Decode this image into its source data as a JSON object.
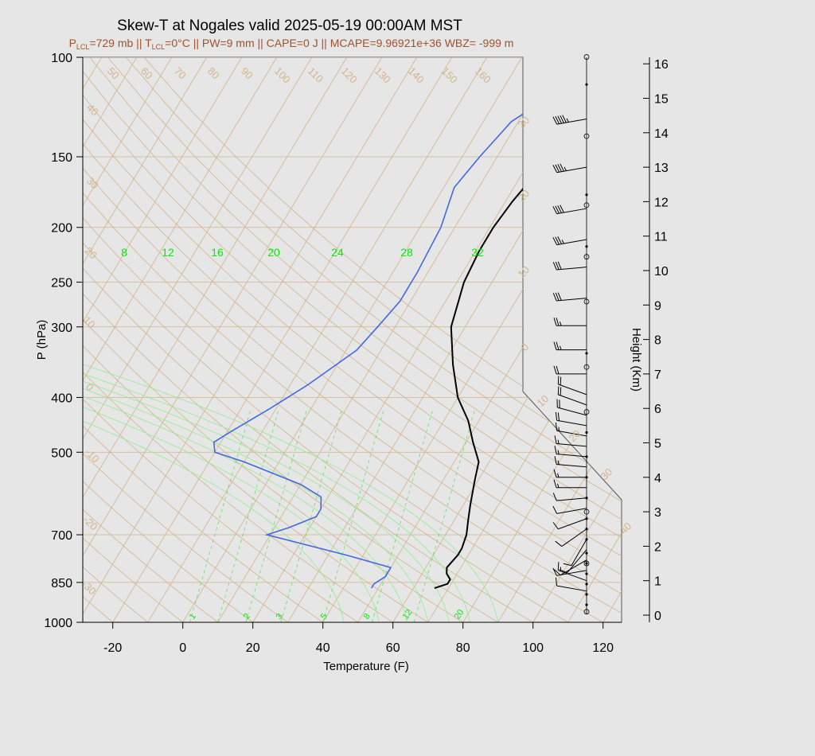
{
  "chart_data": {
    "type": "line",
    "title": "Skew-T at Nogales valid 2025-05-19 00:00AM MST",
    "subtitle": {
      "p_lcl_prefix": "P",
      "p_lcl_sub": "LCL",
      "p_lcl_value": "=729 mb || T",
      "t_lcl_sub": "LCL",
      "rest": "=0°C || PW=9 mm || CAPE=0 J || MCAPE=9.96921e+36 WBZ= -999 m"
    },
    "xlabel": "Temperature (F)",
    "ylabel": "P (hPa)",
    "y2label": "Height (Km)",
    "x_ticks": [
      "-20",
      "0",
      "20",
      "40",
      "60",
      "80",
      "100",
      "120"
    ],
    "p_ticks": [
      "100",
      "150",
      "200",
      "250",
      "300",
      "400",
      "500",
      "700",
      "850",
      "1000"
    ],
    "height_ticks": [
      "0",
      "1",
      "2",
      "3",
      "4",
      "5",
      "6",
      "7",
      "8",
      "9",
      "10",
      "11",
      "12",
      "13",
      "14",
      "15",
      "16"
    ],
    "isotherm_labels": [
      "50",
      "60",
      "70",
      "80",
      "90",
      "100",
      "110",
      "120",
      "130",
      "140",
      "150",
      "160"
    ],
    "theta_labels_left": [
      "40",
      "30",
      "20",
      "10",
      "0",
      "-10",
      "-20",
      "-30"
    ],
    "theta_labels_right": [
      "30",
      "20",
      "10",
      "0",
      "10",
      "20",
      "30",
      "40"
    ],
    "mixing_top_labels": [
      "8",
      "12",
      "16",
      "20",
      "24",
      "28",
      "32"
    ],
    "mixing_bottom_labels": [
      "1",
      "2",
      "3",
      "5",
      "8",
      "12",
      "20"
    ],
    "series": [
      {
        "name": "",
        "color": "#000000",
        "points": [
          [
            66,
            870
          ],
          [
            69,
            855
          ],
          [
            69,
            840
          ],
          [
            67,
            820
          ],
          [
            66,
            800
          ],
          [
            67,
            760
          ],
          [
            67,
            740
          ],
          [
            66,
            700
          ],
          [
            64,
            660
          ],
          [
            62,
            620
          ],
          [
            59,
            560
          ],
          [
            57,
            520
          ],
          [
            52,
            480
          ],
          [
            47,
            440
          ],
          [
            40,
            400
          ],
          [
            33,
            350
          ],
          [
            26,
            300
          ],
          [
            22,
            250
          ],
          [
            21,
            220
          ],
          [
            21,
            200
          ],
          [
            22,
            180
          ],
          [
            25,
            150
          ],
          [
            30,
            130
          ],
          [
            42,
            110
          ],
          [
            52,
            100
          ]
        ]
      },
      {
        "name": "",
        "color": "#4169e1",
        "points": [
          [
            48,
            870
          ],
          [
            48,
            855
          ],
          [
            50,
            830
          ],
          [
            50,
            800
          ],
          [
            35,
            760
          ],
          [
            9,
            700
          ],
          [
            14,
            680
          ],
          [
            20,
            650
          ],
          [
            20,
            630
          ],
          [
            18,
            600
          ],
          [
            10,
            570
          ],
          [
            -10,
            520
          ],
          [
            -20,
            500
          ],
          [
            -22,
            480
          ],
          [
            -19,
            460
          ],
          [
            -12,
            420
          ],
          [
            -5,
            380
          ],
          [
            3,
            330
          ],
          [
            5,
            300
          ],
          [
            7,
            270
          ],
          [
            7,
            240
          ],
          [
            6,
            200
          ],
          [
            3,
            170
          ],
          [
            5,
            150
          ],
          [
            8,
            130
          ],
          [
            25,
            100
          ]
        ]
      }
    ],
    "wind_barbs": [
      {
        "height_km": 14.4,
        "dir": 260,
        "kt": 55
      },
      {
        "height_km": 13.0,
        "dir": 260,
        "kt": 45
      },
      {
        "height_km": 11.8,
        "dir": 260,
        "kt": 40
      },
      {
        "height_km": 10.9,
        "dir": 260,
        "kt": 35
      },
      {
        "height_km": 10.1,
        "dir": 265,
        "kt": 30
      },
      {
        "height_km": 9.2,
        "dir": 265,
        "kt": 30
      },
      {
        "height_km": 8.4,
        "dir": 270,
        "kt": 25
      },
      {
        "height_km": 7.7,
        "dir": 270,
        "kt": 25
      },
      {
        "height_km": 7.0,
        "dir": 270,
        "kt": 20
      },
      {
        "height_km": 6.4,
        "dir": 290,
        "kt": 20
      },
      {
        "height_km": 6.1,
        "dir": 290,
        "kt": 20
      },
      {
        "height_km": 5.8,
        "dir": 285,
        "kt": 20
      },
      {
        "height_km": 5.5,
        "dir": 280,
        "kt": 20
      },
      {
        "height_km": 5.2,
        "dir": 280,
        "kt": 15
      },
      {
        "height_km": 4.9,
        "dir": 275,
        "kt": 15
      },
      {
        "height_km": 4.6,
        "dir": 275,
        "kt": 15
      },
      {
        "height_km": 4.3,
        "dir": 275,
        "kt": 15
      },
      {
        "height_km": 4.0,
        "dir": 270,
        "kt": 15
      },
      {
        "height_km": 3.7,
        "dir": 270,
        "kt": 15
      },
      {
        "height_km": 3.4,
        "dir": 265,
        "kt": 10
      },
      {
        "height_km": 3.1,
        "dir": 260,
        "kt": 10
      },
      {
        "height_km": 2.8,
        "dir": 250,
        "kt": 10
      },
      {
        "height_km": 2.5,
        "dir": 235,
        "kt": 10
      },
      {
        "height_km": 2.2,
        "dir": 210,
        "kt": 10
      },
      {
        "height_km": 1.9,
        "dir": 220,
        "kt": 10
      },
      {
        "height_km": 1.6,
        "dir": 240,
        "kt": 10
      },
      {
        "height_km": 1.3,
        "dir": 260,
        "kt": 10
      },
      {
        "height_km": 1.0,
        "dir": 290,
        "kt": 15
      },
      {
        "height_km": 0.7,
        "dir": 280,
        "kt": 10
      }
    ],
    "dot_markers_km": [
      15.4,
      12.2,
      10.7,
      7.6,
      5.3,
      4.6,
      4.0,
      3.4,
      2.8,
      2.5,
      2.2,
      1.8,
      1.5,
      1.2,
      0.9,
      0.6,
      0.3
    ],
    "circle_markers_km": [
      16.2,
      13.9,
      11.9,
      10.4,
      9.1,
      7.2,
      5.9,
      3.0,
      1.5,
      0.1
    ]
  }
}
